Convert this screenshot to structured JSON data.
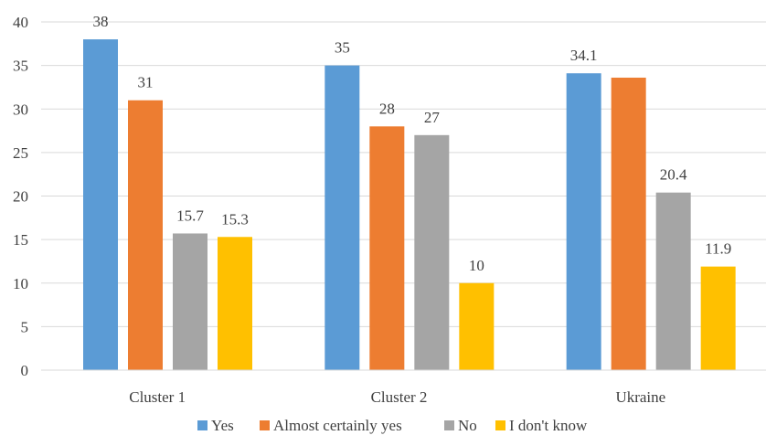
{
  "chart_data": {
    "type": "bar",
    "categories": [
      "Cluster 1",
      "Cluster 2",
      "Ukraine"
    ],
    "series": [
      {
        "name": "Yes",
        "color": "#5B9BD5",
        "values": [
          38,
          35,
          34.1
        ],
        "labels": [
          "38",
          "35",
          "34.1"
        ]
      },
      {
        "name": "Almost certainly yes",
        "color": "#ED7D31",
        "values": [
          31,
          28,
          33.6
        ],
        "labels": [
          "31",
          "28",
          ""
        ]
      },
      {
        "name": "No",
        "color": "#A5A5A5",
        "values": [
          15.7,
          27,
          20.4
        ],
        "labels": [
          "15.7",
          "27",
          "20.4"
        ]
      },
      {
        "name": "I don't know",
        "color": "#FFC000",
        "values": [
          15.3,
          10,
          11.9
        ],
        "labels": [
          "15.3",
          "10",
          "11.9"
        ]
      }
    ],
    "ylim": [
      0,
      40
    ],
    "yticks": [
      0,
      5,
      10,
      15,
      20,
      25,
      30,
      35,
      40
    ],
    "ytick_labels": [
      "0",
      "5",
      "10",
      "15",
      "20",
      "25",
      "30",
      "35",
      "40"
    ],
    "grid": true,
    "legend_position": "bottom"
  }
}
